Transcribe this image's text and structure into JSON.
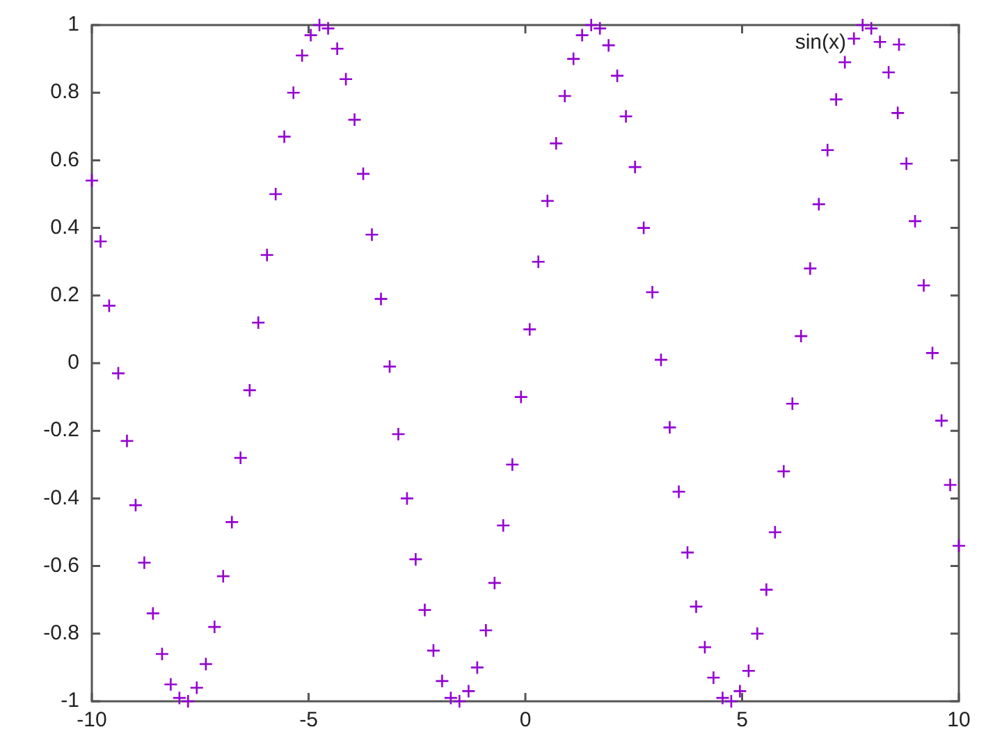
{
  "chart_data": {
    "type": "scatter",
    "xlim": [
      -10,
      10
    ],
    "ylim": [
      -1,
      1
    ],
    "xticks": [
      -10,
      -5,
      0,
      5,
      10
    ],
    "yticks": [
      -1,
      -0.8,
      -0.6,
      -0.4,
      -0.2,
      0,
      0.2,
      0.4,
      0.6,
      0.8,
      1
    ],
    "marker": "cross",
    "legend": "top right",
    "x": [
      -10,
      -9.8,
      -9.6,
      -9.39,
      -9.19,
      -8.99,
      -8.79,
      -8.59,
      -8.38,
      -8.18,
      -7.98,
      -7.78,
      -7.58,
      -7.37,
      -7.17,
      -6.97,
      -6.77,
      -6.57,
      -6.36,
      -6.16,
      -5.96,
      -5.76,
      -5.56,
      -5.35,
      -5.15,
      -4.95,
      -4.75,
      -4.55,
      -4.34,
      -4.14,
      -3.94,
      -3.74,
      -3.54,
      -3.33,
      -3.13,
      -2.93,
      -2.73,
      -2.53,
      -2.32,
      -2.12,
      -1.92,
      -1.72,
      -1.52,
      -1.31,
      -1.11,
      -0.91,
      -0.71,
      -0.51,
      -0.3,
      -0.1,
      0.1,
      0.3,
      0.51,
      0.71,
      0.91,
      1.11,
      1.31,
      1.52,
      1.72,
      1.92,
      2.12,
      2.32,
      2.53,
      2.73,
      2.93,
      3.13,
      3.33,
      3.54,
      3.74,
      3.94,
      4.14,
      4.34,
      4.55,
      4.75,
      4.95,
      5.15,
      5.35,
      5.56,
      5.76,
      5.96,
      6.16,
      6.36,
      6.57,
      6.77,
      6.97,
      7.17,
      7.37,
      7.58,
      7.78,
      7.98,
      8.18,
      8.38,
      8.59,
      8.79,
      8.99,
      9.19,
      9.39,
      9.6,
      9.8,
      10
    ],
    "series": [
      {
        "name": "sin(x)",
        "color": "#9400d3",
        "values": [
          0.54,
          0.36,
          0.17,
          -0.03,
          -0.23,
          -0.42,
          -0.59,
          -0.74,
          -0.86,
          -0.95,
          -0.99,
          -1,
          -0.96,
          -0.89,
          -0.78,
          -0.63,
          -0.47,
          -0.28,
          -0.08,
          0.12,
          0.32,
          0.5,
          0.67,
          0.8,
          0.91,
          0.97,
          1,
          0.99,
          0.93,
          0.84,
          0.72,
          0.56,
          0.38,
          0.19,
          -0.01,
          -0.21,
          -0.4,
          -0.58,
          -0.73,
          -0.85,
          -0.94,
          -0.99,
          -1,
          -0.97,
          -0.9,
          -0.79,
          -0.65,
          -0.48,
          -0.3,
          -0.1,
          0.1,
          0.3,
          0.48,
          0.65,
          0.79,
          0.9,
          0.97,
          1,
          0.99,
          0.94,
          0.85,
          0.73,
          0.58,
          0.4,
          0.21,
          0.01,
          -0.19,
          -0.38,
          -0.56,
          -0.72,
          -0.84,
          -0.93,
          -0.99,
          -1,
          -0.97,
          -0.91,
          -0.8,
          -0.67,
          -0.5,
          -0.32,
          -0.12,
          0.08,
          0.28,
          0.47,
          0.63,
          0.78,
          0.89,
          0.96,
          1,
          0.99,
          0.95,
          0.86,
          0.74,
          0.59,
          0.42,
          0.23,
          0.03,
          -0.17,
          -0.36,
          -0.54
        ]
      }
    ]
  }
}
